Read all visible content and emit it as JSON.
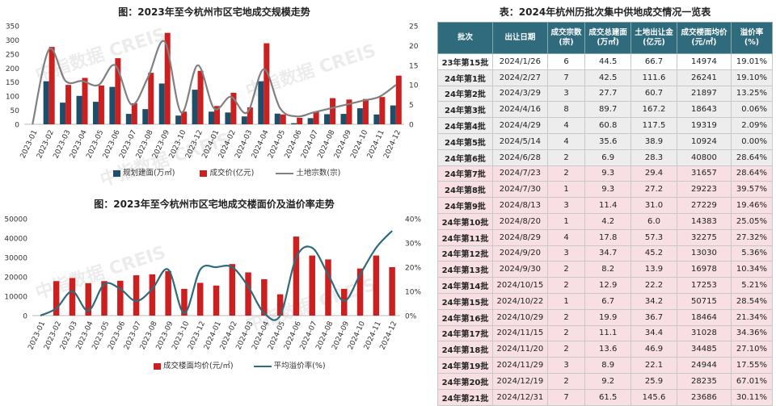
{
  "chart_data": [
    {
      "type": "bar+line",
      "title": "图：2023年至今杭州市区宅地成交规模走势",
      "categories": [
        "2023-01",
        "2023-02",
        "2023-03",
        "2023-04",
        "2023-05",
        "2023-06",
        "2023-07",
        "2023-08",
        "2023-09",
        "2023-10",
        "2023-12",
        "2024-01",
        "2024-02",
        "2024-03",
        "2024-04",
        "2024-05",
        "2024-06",
        "2024-07",
        "2024-08",
        "2024-09",
        "2024-10",
        "2024-11",
        "2024-12"
      ],
      "series": [
        {
          "name": "规划建面(万㎡)",
          "type": "bar",
          "axis": "left",
          "color": "#1f4e6b",
          "values": [
            0,
            153,
            77,
            101,
            80,
            133,
            37,
            54,
            145,
            31,
            123,
            45,
            42,
            28,
            153,
            38,
            4,
            22,
            36,
            37,
            57,
            35,
            67
          ]
        },
        {
          "name": "成交价(亿元)",
          "type": "bar",
          "axis": "left",
          "color": "#cc1f1f",
          "values": [
            0,
            275,
            140,
            165,
            138,
            235,
            75,
            183,
            325,
            45,
            190,
            65,
            112,
            60,
            288,
            35,
            23,
            45,
            93,
            88,
            90,
            97,
            173
          ]
        },
        {
          "name": "土地宗数(宗)",
          "type": "line",
          "axis": "right",
          "color": "#808080",
          "values": [
            0,
            19,
            11,
            11,
            10,
            15,
            5,
            12,
            21,
            3,
            15,
            4,
            7,
            3,
            14,
            4,
            2,
            3,
            4,
            5,
            6,
            7,
            10
          ]
        }
      ],
      "ylim": [
        0,
        350
      ],
      "y_ticks": [
        0,
        50,
        100,
        150,
        200,
        250,
        300,
        350
      ],
      "y2lim": [
        0,
        25
      ],
      "y2_ticks": [
        0,
        5,
        10,
        15,
        20,
        25
      ],
      "legend_position": "bottom"
    },
    {
      "type": "bar+line",
      "title": "图：2023年至今杭州市区宅地成交楼面价及溢价率走势",
      "categories": [
        "2023-01",
        "2023-02",
        "2023-03",
        "2023-04",
        "2023-05",
        "2023-06",
        "2023-07",
        "2023-08",
        "2023-09",
        "2023-10",
        "2023-12",
        "2024-01",
        "2024-02",
        "2024-03",
        "2024-04",
        "2024-05",
        "2024-06",
        "2024-07",
        "2024-08",
        "2024-09",
        "2024-10",
        "2024-11",
        "2024-12"
      ],
      "series": [
        {
          "name": "成交楼面均价(元/㎡)",
          "type": "bar",
          "axis": "left",
          "color": "#cc1f1f",
          "values": [
            0,
            17800,
            19400,
            16700,
            17800,
            18000,
            20800,
            21300,
            23000,
            13800,
            16900,
            15500,
            26600,
            22300,
            18800,
            11000,
            40800,
            31000,
            29000,
            13800,
            24300,
            31000,
            25000
          ]
        },
        {
          "name": "平均溢价率(%)",
          "type": "line",
          "axis": "right",
          "color": "#2f6b7d",
          "values": [
            0,
            3,
            10,
            2,
            13,
            11,
            6,
            11,
            19,
            1,
            19,
            20,
            20,
            12,
            1,
            0,
            24,
            28,
            17,
            6,
            17,
            28,
            35
          ]
        }
      ],
      "ylim": [
        0,
        50000
      ],
      "y_ticks": [
        0,
        10000,
        20000,
        30000,
        40000,
        50000
      ],
      "y2lim": [
        0,
        40
      ],
      "y2_ticks": [
        "0%",
        "10%",
        "20%",
        "30%",
        "40%"
      ],
      "legend_position": "bottom"
    },
    {
      "type": "table",
      "title": "表：2024年杭州历批次集中供地成交情况一览表",
      "columns": [
        "批次",
        "出让日期",
        "成交宗数\n(宗)",
        "成交总建面\n(万㎡)",
        "土地出让金\n(亿元)",
        "成交楼面均价\n(元/㎡)",
        "溢价率\n(%)"
      ],
      "rows": [
        [
          "23年第15批",
          "2024/1/26",
          "6",
          "44.5",
          "66.7",
          "14974",
          "19.01%"
        ],
        [
          "24年第1批",
          "2024/2/27",
          "7",
          "42.5",
          "111.6",
          "26241",
          "19.10%"
        ],
        [
          "24年第2批",
          "2024/3/29",
          "3",
          "27.7",
          "60.7",
          "21897",
          "13.25%"
        ],
        [
          "24年第3批",
          "2024/4/16",
          "8",
          "89.7",
          "167.2",
          "18643",
          "0.06%"
        ],
        [
          "24年第4批",
          "2024/4/29",
          "4",
          "60.8",
          "117.5",
          "19319",
          "2.09%"
        ],
        [
          "24年第5批",
          "2024/5/14",
          "4",
          "35.6",
          "38.9",
          "10924",
          "0.00%"
        ],
        [
          "24年第6批",
          "2024/6/28",
          "2",
          "6.9",
          "28.3",
          "40800",
          "28.64%"
        ],
        [
          "24年第7批",
          "2024/7/23",
          "2",
          "9.3",
          "29.4",
          "31657",
          "28.64%"
        ],
        [
          "24年第8批",
          "2024/7/30",
          "1",
          "9.3",
          "27.2",
          "29223",
          "39.57%"
        ],
        [
          "24年第9批",
          "2024/8/13",
          "3",
          "11.4",
          "31.0",
          "27229",
          "19.46%"
        ],
        [
          "24年第10批",
          "2024/8/20",
          "1",
          "4.2",
          "6.0",
          "14383",
          "25.05%"
        ],
        [
          "24年第11批",
          "2024/8/29",
          "4",
          "17.8",
          "57.3",
          "32275",
          "27.32%"
        ],
        [
          "24年第12批",
          "2024/9/20",
          "3",
          "34.7",
          "45.2",
          "13030",
          "5.36%"
        ],
        [
          "24年第13批",
          "2024/9/30",
          "2",
          "8.2",
          "13.9",
          "16978",
          "10.34%"
        ],
        [
          "24年第14批",
          "2024/10/15",
          "2",
          "12.9",
          "22.2",
          "17253",
          "5.21%"
        ],
        [
          "24年第15批",
          "2024/10/22",
          "1",
          "6.7",
          "34.2",
          "50715",
          "28.54%"
        ],
        [
          "24年第16批",
          "2024/10/29",
          "2",
          "19.9",
          "36.7",
          "18464",
          "21.34%"
        ],
        [
          "24年第17批",
          "2024/11/15",
          "2",
          "11.1",
          "34.4",
          "31028",
          "34.36%"
        ],
        [
          "24年第18批",
          "2024/11/20",
          "2",
          "13.6",
          "46.9",
          "34485",
          "27.10%"
        ],
        [
          "24年第19批",
          "2024/11/29",
          "3",
          "8.9",
          "22.1",
          "24944",
          "17.55%"
        ],
        [
          "24年第20批",
          "2024/12/19",
          "2",
          "9.2",
          "25.9",
          "28235",
          "67.01%"
        ],
        [
          "24年第21批",
          "2024/12/31",
          "7",
          "61.5",
          "145.6",
          "23686",
          "30.11%"
        ]
      ]
    }
  ],
  "watermark": "中指数据 CREIS",
  "colors": {
    "header_bg": "#2f6b7d",
    "row_grey": "#ededed",
    "row_pink": "#f7dfe3",
    "bar_red": "#cc1f1f",
    "bar_navy": "#1f4e6b",
    "line_grey": "#808080",
    "line_teal": "#2f6b7d"
  }
}
